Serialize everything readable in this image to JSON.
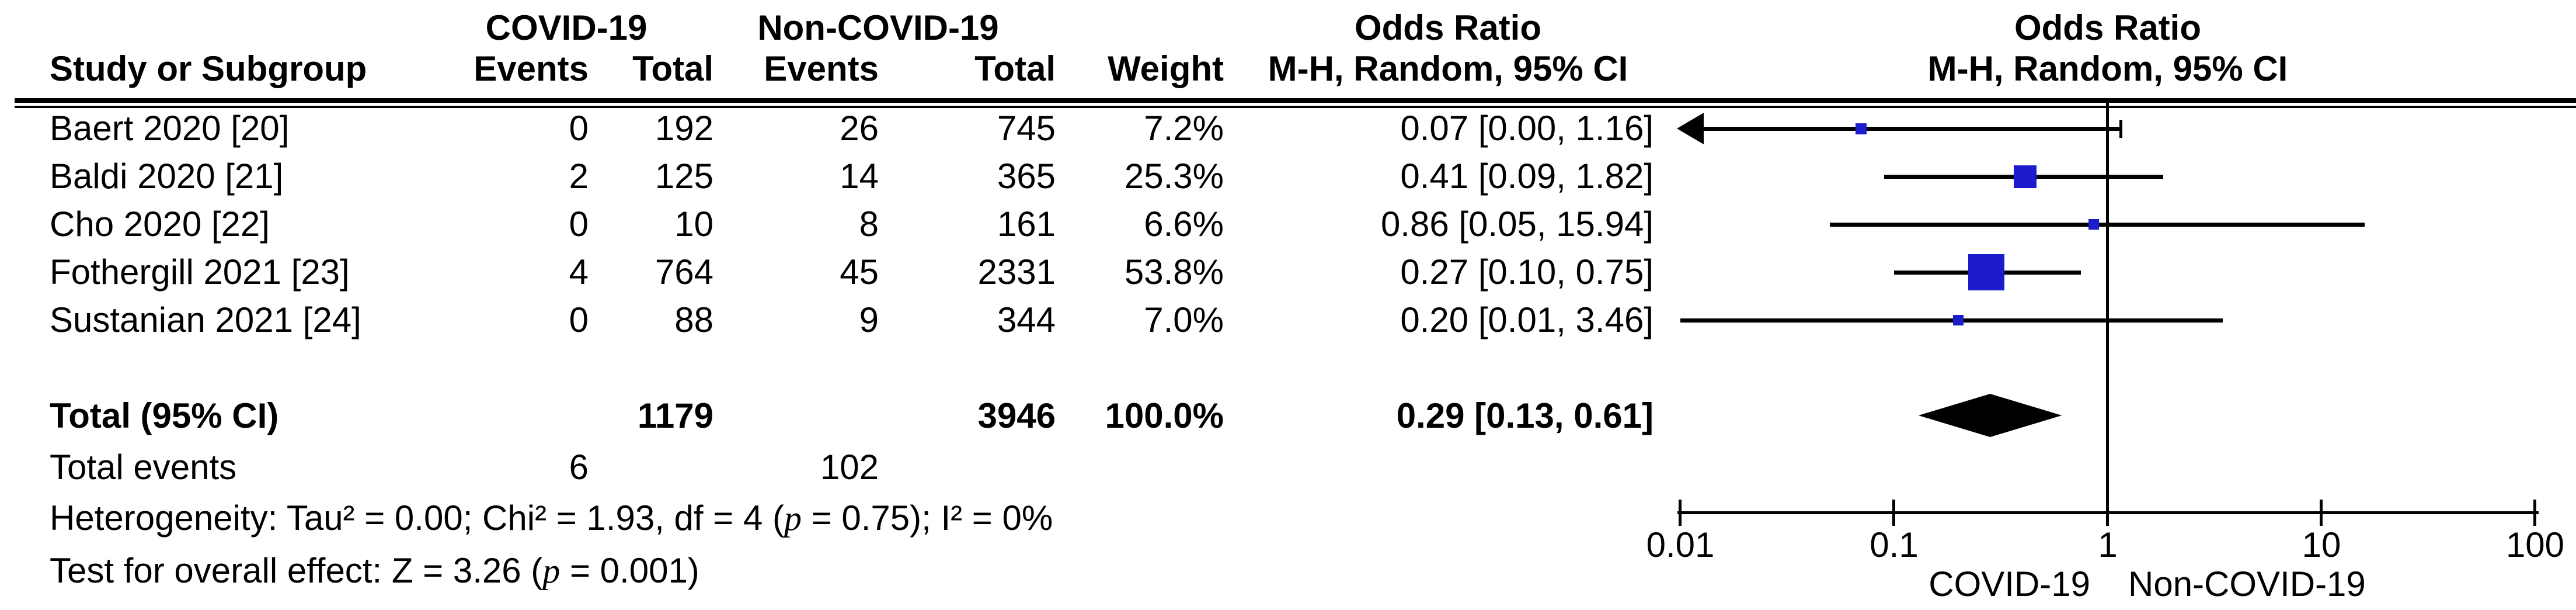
{
  "table": {
    "group_headers": {
      "covid": "COVID-19",
      "noncovid": "Non-COVID-19",
      "or_left_line1": "Odds Ratio",
      "or_left_line2": "M-H, Random, 95% CI",
      "or_right_line1": "Odds Ratio",
      "or_right_line2": "M-H, Random, 95% CI"
    },
    "col_headers": {
      "study": "Study or Subgroup",
      "events1": "Events",
      "total1": "Total",
      "events2": "Events",
      "total2": "Total",
      "weight": "Weight"
    },
    "rows": [
      {
        "study": "Baert 2020 [20]",
        "e1": "0",
        "t1": "192",
        "e2": "26",
        "t2": "745",
        "weight": "7.2%",
        "or_ci": "0.07 [0.00, 1.16]"
      },
      {
        "study": "Baldi 2020 [21]",
        "e1": "2",
        "t1": "125",
        "e2": "14",
        "t2": "365",
        "weight": "25.3%",
        "or_ci": "0.41 [0.09, 1.82]"
      },
      {
        "study": "Cho 2020 [22]",
        "e1": "0",
        "t1": "10",
        "e2": "8",
        "t2": "161",
        "weight": "6.6%",
        "or_ci": "0.86 [0.05, 15.94]"
      },
      {
        "study": "Fothergill 2021 [23]",
        "e1": "4",
        "t1": "764",
        "e2": "45",
        "t2": "2331",
        "weight": "53.8%",
        "or_ci": "0.27 [0.10, 0.75]"
      },
      {
        "study": "Sustanian 2021 [24]",
        "e1": "0",
        "t1": "88",
        "e2": "9",
        "t2": "344",
        "weight": "7.0%",
        "or_ci": "0.20 [0.01, 3.46]"
      }
    ],
    "total_row": {
      "label": "Total (95% CI)",
      "t1": "1179",
      "t2": "3946",
      "weight": "100.0%",
      "or_ci": "0.29 [0.13, 0.61]"
    },
    "total_events": {
      "label": "Total events",
      "e1": "6",
      "e2": "102"
    }
  },
  "stats": {
    "het_prefix": "Heterogeneity: Tau² = 0.00; Chi² = 1.93, df = 4 (",
    "p": "p",
    "het_suffix": " = 0.75); I² = 0%",
    "test_prefix": "Test for overall effect: Z = 3.26 (",
    "test_suffix": " = 0.001)"
  },
  "chart_data": {
    "type": "forest",
    "effect_measure": "Odds Ratio, M-H, Random, 95% CI",
    "colors": {
      "marker": "#1c1ccd",
      "diamond": "#000000",
      "line": "#000000"
    },
    "studies": [
      {
        "name": "Baert 2020 [20]",
        "covid_events": 0,
        "covid_total": 192,
        "noncovid_events": 26,
        "noncovid_total": 745,
        "weight_pct": 7.2,
        "or": 0.07,
        "ci_lower": 0.0,
        "ci_upper": 1.16,
        "ci_lower_offscale": true
      },
      {
        "name": "Baldi 2020 [21]",
        "covid_events": 2,
        "covid_total": 125,
        "noncovid_events": 14,
        "noncovid_total": 365,
        "weight_pct": 25.3,
        "or": 0.41,
        "ci_lower": 0.09,
        "ci_upper": 1.82,
        "ci_lower_offscale": false
      },
      {
        "name": "Cho 2020 [22]",
        "covid_events": 0,
        "covid_total": 10,
        "noncovid_events": 8,
        "noncovid_total": 161,
        "weight_pct": 6.6,
        "or": 0.86,
        "ci_lower": 0.05,
        "ci_upper": 15.94,
        "ci_lower_offscale": false
      },
      {
        "name": "Fothergill 2021 [23]",
        "covid_events": 4,
        "covid_total": 764,
        "noncovid_events": 45,
        "noncovid_total": 2331,
        "weight_pct": 53.8,
        "or": 0.27,
        "ci_lower": 0.1,
        "ci_upper": 0.75,
        "ci_lower_offscale": false
      },
      {
        "name": "Sustanian 2021 [24]",
        "covid_events": 0,
        "covid_total": 88,
        "noncovid_events": 9,
        "noncovid_total": 344,
        "weight_pct": 7.0,
        "or": 0.2,
        "ci_lower": 0.01,
        "ci_upper": 3.46,
        "ci_lower_offscale": false
      }
    ],
    "total": {
      "covid_events": 6,
      "covid_total": 1179,
      "noncovid_events": 102,
      "noncovid_total": 3946,
      "weight_pct": 100.0,
      "or": 0.29,
      "ci_lower": 0.13,
      "ci_upper": 0.61
    },
    "heterogeneity": "Tau² = 0.00; Chi² = 1.93, df = 4 (p = 0.75); I² = 0%",
    "overall_effect": "Z = 3.26 (p = 0.001)",
    "axis": {
      "scale": "log",
      "min": 0.01,
      "max": 100,
      "tick_values": [
        0.01,
        0.1,
        1,
        10,
        100
      ],
      "tick_labels": [
        "0.01",
        "0.1",
        "1",
        "10",
        "100"
      ],
      "favours_left": "COVID-19",
      "favours_right": "Non-COVID-19"
    }
  }
}
